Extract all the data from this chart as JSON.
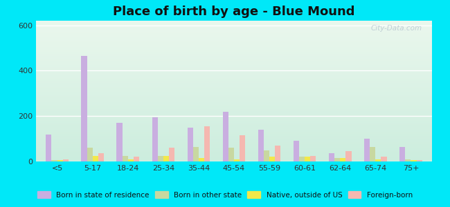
{
  "title": "Place of birth by age - Blue Mound",
  "categories": [
    "<5",
    "5-17",
    "18-24",
    "25-34",
    "35-44",
    "45-54",
    "55-59",
    "60-61",
    "62-64",
    "65-74",
    "75+"
  ],
  "series": {
    "Born in state of residence": [
      120,
      465,
      170,
      195,
      150,
      220,
      140,
      90,
      35,
      100,
      65
    ],
    "Born in other state": [
      5,
      60,
      25,
      25,
      65,
      60,
      50,
      20,
      15,
      65,
      10
    ],
    "Native, outside of US": [
      5,
      25,
      10,
      25,
      15,
      10,
      20,
      20,
      15,
      10,
      5
    ],
    "Foreign-born": [
      10,
      35,
      20,
      60,
      155,
      115,
      70,
      25,
      45,
      20,
      5
    ]
  },
  "colors": {
    "Born in state of residence": "#c9aee0",
    "Born in other state": "#c8d8a0",
    "Native, outside of US": "#f2e84a",
    "Foreign-born": "#f5b8b0"
  },
  "ylim": [
    0,
    620
  ],
  "yticks": [
    0,
    200,
    400,
    600
  ],
  "outer_background": "#00e8f8",
  "grid_color": "#ffffff",
  "title_fontsize": 13,
  "bar_width": 0.16
}
